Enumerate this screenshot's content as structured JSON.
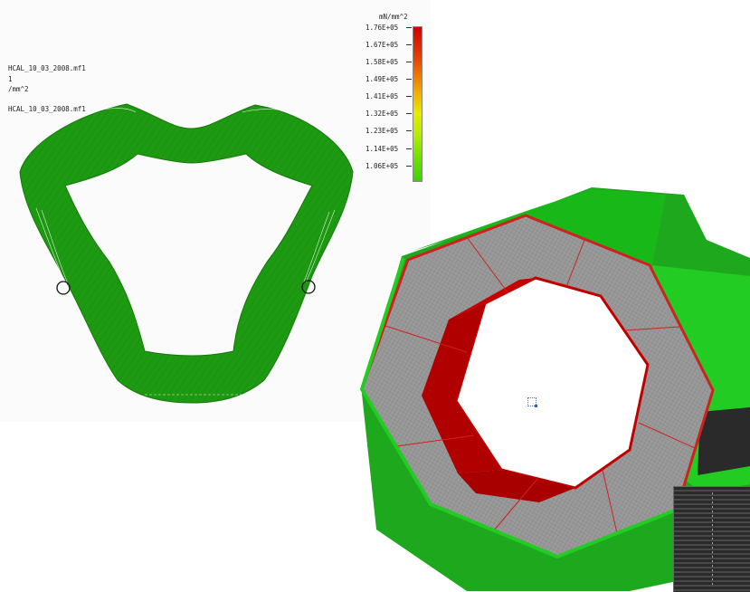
{
  "fea_panel": {
    "info_lines": [
      "HCAL_10_03_2008.mf1",
      "1",
      "/mm^2",
      "HCAL_10_03_2008.mf1"
    ],
    "legend": {
      "unit": "mN/mm^2",
      "labels": [
        "1.76E+05",
        "1.67E+05",
        "1.58E+05",
        "1.49E+05",
        "1.41E+05",
        "1.32E+05",
        "1.23E+05",
        "1.14E+05",
        "1.06E+05"
      ],
      "gradient_colors": [
        "#d40000",
        "#f07a00",
        "#e6ea00",
        "#6fe000",
        "#3ad400"
      ]
    },
    "deformed_shape_color": "#1e9a12"
  },
  "hcal_model": {
    "outer_shell_color": "#22cc22",
    "inner_face_color": "#c00000",
    "mesh_color": "#9a9a9a",
    "edge_color": "#d02020"
  }
}
